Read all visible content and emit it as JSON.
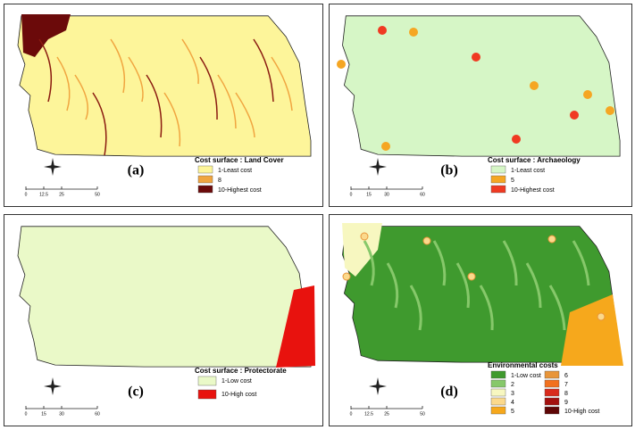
{
  "panels": [
    {
      "label": "(a)",
      "legend_title": "Cost surface : Land Cover",
      "legend": [
        {
          "text": "1-Least cost",
          "color": "#fdf59a"
        },
        {
          "text": "8",
          "color": "#f0a540"
        },
        {
          "text": "10-Highest cost",
          "color": "#6b0a0a"
        }
      ],
      "scale": [
        "0",
        "12.5",
        "25",
        "50"
      ]
    },
    {
      "label": "(b)",
      "legend_title": "Cost surface : Archaeology",
      "legend": [
        {
          "text": "1-Least cost",
          "color": "#d6f6c6"
        },
        {
          "text": "5",
          "color": "#f5a623"
        },
        {
          "text": "10-Highest cost",
          "color": "#f03a22"
        }
      ],
      "scale": [
        "0",
        "15",
        "30",
        "60"
      ]
    },
    {
      "label": "(c)",
      "legend_title": "Cost surface : Protectorate",
      "legend": [
        {
          "text": "1-Low cost",
          "color": "#eaf9c8"
        },
        {
          "text": "10-High cost",
          "color": "#e8120e"
        }
      ],
      "scale": [
        "0",
        "15",
        "30",
        "60"
      ]
    },
    {
      "label": "(d)",
      "legend_title": "Environmental costs",
      "legend": [
        {
          "text": "1-Low cost",
          "color": "#3f9a2e"
        },
        {
          "text": "2",
          "color": "#86c86a"
        },
        {
          "text": "3",
          "color": "#f7f7c0"
        },
        {
          "text": "4",
          "color": "#fbd98c"
        },
        {
          "text": "5",
          "color": "#f6a81c"
        },
        {
          "text": "6",
          "color": "#e8953a"
        },
        {
          "text": "7",
          "color": "#f2711e"
        },
        {
          "text": "8",
          "color": "#d92b1c"
        },
        {
          "text": "9",
          "color": "#a3100e"
        },
        {
          "text": "10-High cost",
          "color": "#5e0606"
        }
      ],
      "scale": [
        "0",
        "12.5",
        "25",
        "50"
      ]
    }
  ]
}
